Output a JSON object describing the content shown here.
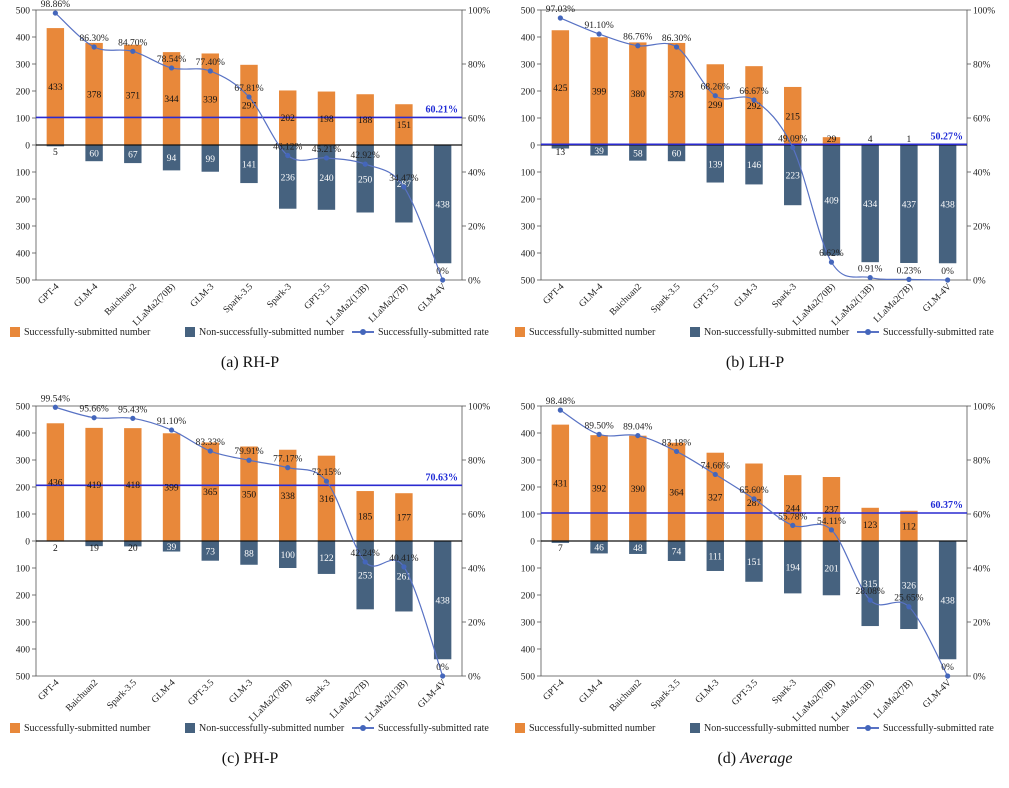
{
  "colors": {
    "success_bar": "#e8883a",
    "fail_bar": "#46627f",
    "rate_line": "#4466bb",
    "avg_line": "#2a2ad0"
  },
  "chart_data": [
    {
      "type": "bar",
      "caption_label": "(a)",
      "caption_name": "RH-P",
      "categories": [
        "GPT-4",
        "GLM-4",
        "Baichuan2",
        "LLaMa2(70B)",
        "GLM-3",
        "Spark-3.5",
        "Spark-3",
        "GPT-3.5",
        "LLaMa2(13B)",
        "LLaMa2(7B)",
        "GLM-4V"
      ],
      "series": [
        {
          "name": "Successfully-submitted number",
          "values": [
            433,
            378,
            371,
            344,
            339,
            297,
            202,
            198,
            188,
            151,
            0
          ]
        },
        {
          "name": "Non-successfully-submitted number",
          "values": [
            5,
            60,
            67,
            94,
            99,
            141,
            236,
            240,
            250,
            287,
            438
          ]
        },
        {
          "name": "Successfully-submitted rate",
          "values": [
            "98.86%",
            "86.30%",
            "84.70%",
            "78.54%",
            "77.40%",
            "67.81%",
            "46.12%",
            "45.21%",
            "42.92%",
            "34.47%",
            "0%"
          ]
        }
      ],
      "bar_labels_top": [
        "433",
        "378",
        "371",
        "344",
        "339",
        "297",
        "202",
        "198",
        "188",
        "151",
        "0"
      ],
      "bar_labels_bottom": [
        "5",
        "60",
        "67",
        "94",
        "99",
        "141",
        "236",
        "240",
        "250",
        "287",
        "438"
      ],
      "average_rate": "60.21%",
      "left_ticks": [
        "500",
        "400",
        "300",
        "200",
        "100",
        "0",
        "100",
        "200",
        "300",
        "400",
        "500"
      ],
      "right_ticks": [
        "100%",
        "80%",
        "60%",
        "40%",
        "20%",
        "0%"
      ],
      "ylim": [
        -500,
        500
      ],
      "y2lim": [
        0,
        100
      ]
    },
    {
      "type": "bar",
      "caption_label": "(b)",
      "caption_name": "LH-P",
      "categories": [
        "GPT-4",
        "GLM-4",
        "Baichuan2",
        "Spark-3.5",
        "GPT-3.5",
        "GLM-3",
        "Spark-3",
        "LLaMa2(70B)",
        "LLaMa2(13B)",
        "LLaMa2(7B)",
        "GLM-4V"
      ],
      "series": [
        {
          "name": "Successfully-submitted number",
          "values": [
            425,
            399,
            380,
            378,
            299,
            292,
            215,
            29,
            4,
            1,
            0
          ]
        },
        {
          "name": "Non-successfully-submitted number",
          "values": [
            13,
            39,
            58,
            60,
            139,
            146,
            223,
            409,
            434,
            437,
            438
          ]
        },
        {
          "name": "Successfully-submitted rate",
          "values": [
            "97.03%",
            "91.10%",
            "86.76%",
            "86.30%",
            "68.26%",
            "66.67%",
            "49.09%",
            "6.62%",
            "0.91%",
            "0.23%",
            "0%"
          ]
        }
      ],
      "bar_labels_top": [
        "425",
        "399",
        "380",
        "378",
        "299",
        "292",
        "215",
        "29",
        "4",
        "1",
        "0"
      ],
      "bar_labels_bottom": [
        "13",
        "39",
        "58",
        "60",
        "139",
        "146",
        "223",
        "409",
        "434",
        "437",
        "438"
      ],
      "average_rate": "50.27%",
      "left_ticks": [
        "500",
        "400",
        "300",
        "200",
        "100",
        "0",
        "100",
        "200",
        "300",
        "400",
        "500"
      ],
      "right_ticks": [
        "100%",
        "80%",
        "60%",
        "40%",
        "20%",
        "0%"
      ],
      "ylim": [
        -500,
        500
      ],
      "y2lim": [
        0,
        100
      ]
    },
    {
      "type": "bar",
      "caption_label": "(c)",
      "caption_name": "PH-P",
      "categories": [
        "GPT-4",
        "Baichuan2",
        "Spark-3.5",
        "GLM-4",
        "GPT-3.5",
        "GLM-3",
        "LLaMa2(70B)",
        "Spark-3",
        "LLaMa2(7B)",
        "LLaMa2(13B)",
        "GLM-4V"
      ],
      "series": [
        {
          "name": "Successfully-submitted number",
          "values": [
            436,
            419,
            418,
            399,
            365,
            350,
            338,
            316,
            185,
            177,
            0
          ]
        },
        {
          "name": "Non-successfully-submitted number",
          "values": [
            2,
            19,
            20,
            39,
            73,
            88,
            100,
            122,
            253,
            261,
            438
          ]
        },
        {
          "name": "Successfully-submitted rate",
          "values": [
            "99.54%",
            "95.66%",
            "95.43%",
            "91.10%",
            "83.33%",
            "79.91%",
            "77.17%",
            "72.15%",
            "42.24%",
            "40.41%",
            "0%"
          ]
        }
      ],
      "bar_labels_top": [
        "436",
        "419",
        "418",
        "399",
        "365",
        "350",
        "338",
        "316",
        "185",
        "177",
        "0"
      ],
      "bar_labels_bottom": [
        "2",
        "19",
        "20",
        "39",
        "73",
        "88",
        "100",
        "122",
        "253",
        "261",
        "438"
      ],
      "average_rate": "70.63%",
      "left_ticks": [
        "500",
        "400",
        "300",
        "200",
        "100",
        "0",
        "100",
        "200",
        "300",
        "400",
        "500"
      ],
      "right_ticks": [
        "100%",
        "80%",
        "60%",
        "40%",
        "20%",
        "0%"
      ],
      "ylim": [
        -500,
        500
      ],
      "y2lim": [
        0,
        100
      ]
    },
    {
      "type": "bar",
      "caption_label": "(d)",
      "caption_name": "Average",
      "caption_italic": true,
      "categories": [
        "GPT-4",
        "GLM-4",
        "Baichuan2",
        "Spark-3.5",
        "GLM-3",
        "GPT-3.5",
        "Spark-3",
        "LLaMa2(70B)",
        "LLaMa2(13B)",
        "LLaMa2(7B)",
        "GLM-4V"
      ],
      "series": [
        {
          "name": "Successfully-submitted number",
          "values": [
            431,
            392,
            390,
            364,
            327,
            287,
            244,
            237,
            123,
            112,
            0
          ]
        },
        {
          "name": "Non-successfully-submitted number",
          "values": [
            7,
            46,
            48,
            74,
            111,
            151,
            194,
            201,
            315,
            326,
            438
          ]
        },
        {
          "name": "Successfully-submitted rate",
          "values": [
            "98.48%",
            "89.50%",
            "89.04%",
            "83.18%",
            "74.66%",
            "65.60%",
            "55.78%",
            "54.11%",
            "28.08%",
            "25.65%",
            "0%"
          ]
        }
      ],
      "bar_labels_top": [
        "431",
        "392",
        "390",
        "364",
        "327",
        "287",
        "244",
        "237",
        "123",
        "112",
        "0"
      ],
      "bar_labels_bottom": [
        "7",
        "46",
        "48",
        "74",
        "111",
        "151",
        "194",
        "201",
        "315",
        "326",
        "438"
      ],
      "average_rate": "60.37%",
      "left_ticks": [
        "500",
        "400",
        "300",
        "200",
        "100",
        "0",
        "100",
        "200",
        "300",
        "400",
        "500"
      ],
      "right_ticks": [
        "100%",
        "80%",
        "60%",
        "40%",
        "20%",
        "0%"
      ],
      "ylim": [
        -500,
        500
      ],
      "y2lim": [
        0,
        100
      ]
    }
  ]
}
